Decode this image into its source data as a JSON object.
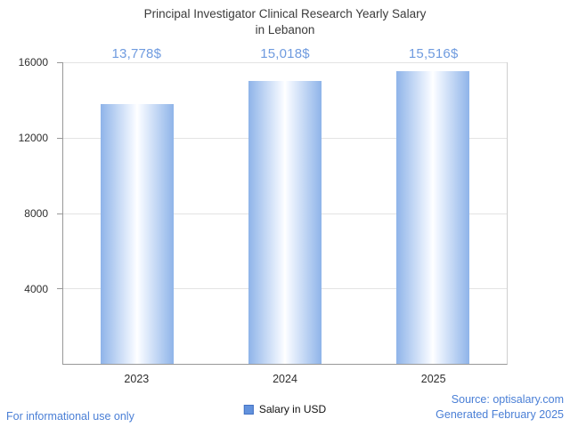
{
  "title": {
    "line1": "Principal Investigator Clinical Research Yearly Salary",
    "line2": "in Lebanon"
  },
  "chart_data": {
    "type": "bar",
    "title": "Principal Investigator Clinical Research Yearly Salary in Lebanon",
    "categories": [
      "2023",
      "2024",
      "2025"
    ],
    "series": [
      {
        "name": "Salary in USD",
        "values": [
          13778,
          15018,
          15516
        ],
        "value_labels": [
          "13,778$",
          "15,018$",
          "15,516$"
        ]
      }
    ],
    "xlabel": "",
    "ylabel": "",
    "ylim": [
      0,
      16000
    ],
    "yticks": [
      4000,
      8000,
      12000,
      16000
    ],
    "grid": true,
    "legend_position": "bottom",
    "bar_edge_color": "#8fb4e9",
    "bar_center_color": "#ffffff",
    "value_label_color": "#6f9bdf"
  },
  "legend": {
    "label": "Salary in USD",
    "swatch_color": "#6292dd"
  },
  "footer": {
    "disclaimer": "For informational use only",
    "source": "Source: optisalary.com",
    "generated": "Generated February 2025"
  }
}
